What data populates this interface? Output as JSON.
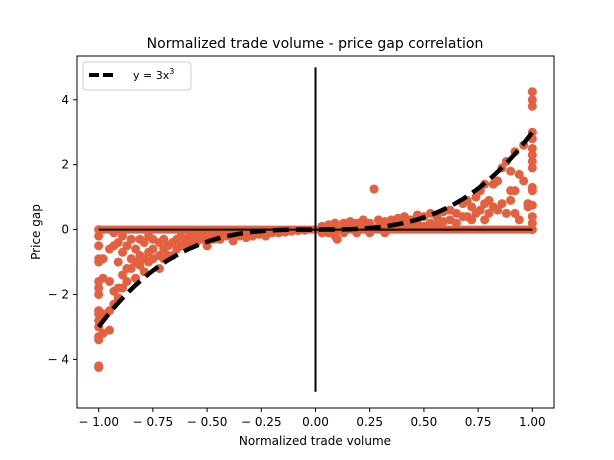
{
  "chart_data": {
    "type": "scatter",
    "title": "Normalized trade volume - price gap correlation",
    "xlabel": "Normalized trade volume",
    "ylabel": "Price gap",
    "xlim": [
      -1.1,
      1.1
    ],
    "ylim": [
      -5.5,
      5.35
    ],
    "xticks": [
      -1.0,
      -0.75,
      -0.5,
      -0.25,
      0.0,
      0.25,
      0.5,
      0.75,
      1.0
    ],
    "xtick_labels": [
      "− 1.00",
      "− 0.75",
      "− 0.50",
      "− 0.25",
      "0.00",
      "0.25",
      "0.50",
      "0.75",
      "1.00"
    ],
    "yticks": [
      -4,
      -2,
      0,
      2,
      4
    ],
    "ytick_labels": [
      "− 4",
      "− 2",
      "0",
      "2",
      "4"
    ],
    "grid": false,
    "legend": {
      "position": "top-left",
      "entries": [
        {
          "label": "y = 3x",
          "label_sup": "3"
        }
      ]
    },
    "colors": {
      "scatter": "#e4603e",
      "fit": "#000000",
      "lines": "#000000"
    },
    "reference_lines": [
      {
        "orientation": "vertical",
        "x": 0,
        "y_range": [
          -5,
          5
        ]
      },
      {
        "orientation": "horizontal",
        "y": 0,
        "x_range": [
          -1,
          1
        ]
      }
    ],
    "fit_curve": {
      "equation": "y = 3x^3",
      "coefficient": 3,
      "power": 3,
      "x_range": [
        -1,
        1
      ],
      "style": "dashed"
    },
    "series": [
      {
        "points": [
          [
            -1.0,
            -4.25
          ],
          [
            -1.0,
            -4.2
          ],
          [
            -1.0,
            -3.4
          ],
          [
            -1.0,
            -3.3
          ],
          [
            -1.0,
            -3.0
          ],
          [
            -1.0,
            -2.8
          ],
          [
            -1.0,
            -2.6
          ],
          [
            -1.0,
            -2.5
          ],
          [
            -1.0,
            -2.0
          ],
          [
            -1.0,
            -1.8
          ],
          [
            -1.0,
            -1.6
          ],
          [
            -1.0,
            -1.0
          ],
          [
            -1.0,
            -0.9
          ],
          [
            -1.0,
            -0.5
          ],
          [
            -1.0,
            -0.2
          ],
          [
            -1.0,
            0.0
          ],
          [
            -0.98,
            -3.2
          ],
          [
            -0.98,
            -2.6
          ],
          [
            -0.98,
            -1.5
          ],
          [
            -0.98,
            -0.9
          ],
          [
            -0.95,
            -3.1
          ],
          [
            -0.95,
            -2.5
          ],
          [
            -0.95,
            -1.6
          ],
          [
            -0.95,
            -0.6
          ],
          [
            -0.93,
            -2.3
          ],
          [
            -0.93,
            -1.9
          ],
          [
            -0.93,
            -0.5
          ],
          [
            -0.93,
            -0.1
          ],
          [
            -0.91,
            -2.1
          ],
          [
            -0.91,
            -1.8
          ],
          [
            -0.91,
            -1.0
          ],
          [
            -0.91,
            -0.4
          ],
          [
            -0.89,
            -1.8
          ],
          [
            -0.89,
            -1.4
          ],
          [
            -0.89,
            -0.7
          ],
          [
            -0.89,
            -0.2
          ],
          [
            -0.87,
            -1.6
          ],
          [
            -0.87,
            -1.2
          ],
          [
            -0.87,
            -0.5
          ],
          [
            -0.85,
            -1.2
          ],
          [
            -0.85,
            -0.9
          ],
          [
            -0.85,
            -0.3
          ],
          [
            -0.83,
            -1.5
          ],
          [
            -0.83,
            -1.0
          ],
          [
            -0.83,
            -0.6
          ],
          [
            -0.81,
            -1.1
          ],
          [
            -0.81,
            -0.8
          ],
          [
            -0.81,
            -0.3
          ],
          [
            -0.79,
            -1.3
          ],
          [
            -0.79,
            -0.9
          ],
          [
            -0.79,
            -0.4
          ],
          [
            -0.77,
            -1.0
          ],
          [
            -0.77,
            -0.7
          ],
          [
            -0.77,
            -0.2
          ],
          [
            -0.75,
            -0.9
          ],
          [
            -0.75,
            -0.6
          ],
          [
            -0.75,
            -0.3
          ],
          [
            -0.72,
            -1.2
          ],
          [
            -0.72,
            -0.8
          ],
          [
            -0.72,
            -0.4
          ],
          [
            -0.7,
            -0.9
          ],
          [
            -0.7,
            -0.6
          ],
          [
            -0.7,
            -0.3
          ],
          [
            -0.68,
            -0.8
          ],
          [
            -0.68,
            -0.5
          ],
          [
            -0.66,
            -0.8
          ],
          [
            -0.66,
            -0.4
          ],
          [
            -0.64,
            -0.6
          ],
          [
            -0.64,
            -0.3
          ],
          [
            -0.62,
            -0.5
          ],
          [
            -0.62,
            -0.2
          ],
          [
            -0.6,
            -0.5
          ],
          [
            -0.6,
            -0.3
          ],
          [
            -0.58,
            -0.4
          ],
          [
            -0.58,
            -0.2
          ],
          [
            -0.55,
            -0.4
          ],
          [
            -0.55,
            -0.2
          ],
          [
            -0.52,
            -0.3
          ],
          [
            -0.52,
            -0.1
          ],
          [
            -0.5,
            -0.5
          ],
          [
            -0.5,
            -0.2
          ],
          [
            -0.47,
            -0.3
          ],
          [
            -0.47,
            -0.15
          ],
          [
            -0.44,
            -0.3
          ],
          [
            -0.44,
            -0.1
          ],
          [
            -0.41,
            -0.2
          ],
          [
            -0.41,
            -0.1
          ],
          [
            -0.38,
            -0.35
          ],
          [
            -0.38,
            -0.15
          ],
          [
            -0.35,
            -0.2
          ],
          [
            -0.35,
            -0.1
          ],
          [
            -0.32,
            -0.25
          ],
          [
            -0.32,
            -0.1
          ],
          [
            -0.29,
            -0.2
          ],
          [
            -0.29,
            -0.05
          ],
          [
            -0.26,
            -0.15
          ],
          [
            -0.26,
            -0.05
          ],
          [
            -0.23,
            -0.2
          ],
          [
            -0.23,
            -0.1
          ],
          [
            -0.2,
            -0.1
          ],
          [
            -0.2,
            -0.05
          ],
          [
            -0.17,
            -0.1
          ],
          [
            -0.14,
            -0.08
          ],
          [
            -0.11,
            -0.05
          ],
          [
            -0.08,
            -0.03
          ],
          [
            -0.05,
            -0.02
          ],
          [
            0.03,
            0.1
          ],
          [
            0.03,
            -0.1
          ],
          [
            0.06,
            0.15
          ],
          [
            0.06,
            -0.1
          ],
          [
            0.09,
            0.2
          ],
          [
            0.09,
            -0.2
          ],
          [
            0.1,
            -0.3
          ],
          [
            0.13,
            0.2
          ],
          [
            0.13,
            -0.1
          ],
          [
            0.16,
            0.25
          ],
          [
            0.16,
            0.1
          ],
          [
            0.19,
            0.2
          ],
          [
            0.19,
            -0.1
          ],
          [
            0.22,
            0.3
          ],
          [
            0.22,
            0.1
          ],
          [
            0.25,
            0.2
          ],
          [
            0.25,
            -0.1
          ],
          [
            0.27,
            1.25
          ],
          [
            0.29,
            0.3
          ],
          [
            0.29,
            0.1
          ],
          [
            0.32,
            0.25
          ],
          [
            0.32,
            -0.1
          ],
          [
            0.35,
            0.3
          ],
          [
            0.35,
            0.1
          ],
          [
            0.38,
            0.35
          ],
          [
            0.38,
            0.15
          ],
          [
            0.41,
            0.4
          ],
          [
            0.41,
            0.2
          ],
          [
            0.44,
            0.3
          ],
          [
            0.44,
            0.1
          ],
          [
            0.47,
            0.45
          ],
          [
            0.47,
            0.2
          ],
          [
            0.5,
            0.4
          ],
          [
            0.5,
            0.1
          ],
          [
            0.53,
            0.5
          ],
          [
            0.53,
            0.2
          ],
          [
            0.56,
            0.4
          ],
          [
            0.56,
            0.15
          ],
          [
            0.59,
            0.55
          ],
          [
            0.59,
            0.25
          ],
          [
            0.62,
            0.6
          ],
          [
            0.62,
            0.3
          ],
          [
            0.65,
            0.5
          ],
          [
            0.65,
            0.2
          ],
          [
            0.68,
            0.8
          ],
          [
            0.68,
            0.4
          ],
          [
            0.7,
            0.9
          ],
          [
            0.7,
            0.4
          ],
          [
            0.72,
            0.7
          ],
          [
            0.72,
            0.3
          ],
          [
            0.74,
            1.0
          ],
          [
            0.74,
            0.5
          ],
          [
            0.76,
            1.2
          ],
          [
            0.76,
            0.6
          ],
          [
            0.78,
            1.4
          ],
          [
            0.78,
            0.8
          ],
          [
            0.78,
            0.3
          ],
          [
            0.8,
            0.9
          ],
          [
            0.8,
            0.5
          ],
          [
            0.82,
            1.4
          ],
          [
            0.82,
            0.7
          ],
          [
            0.84,
            1.5
          ],
          [
            0.84,
            0.6
          ],
          [
            0.86,
            1.9
          ],
          [
            0.86,
            0.8
          ],
          [
            0.88,
            2.1
          ],
          [
            0.88,
            0.5
          ],
          [
            0.9,
            1.8
          ],
          [
            0.9,
            0.9
          ],
          [
            0.9,
            1.2
          ],
          [
            0.92,
            2.4
          ],
          [
            0.92,
            1.2
          ],
          [
            0.92,
            0.5
          ],
          [
            0.94,
            1.7
          ],
          [
            0.94,
            0.3
          ],
          [
            0.96,
            2.6
          ],
          [
            0.96,
            1.5
          ],
          [
            0.98,
            0.8
          ],
          [
            0.98,
            0.7
          ],
          [
            1.0,
            4.25
          ],
          [
            1.0,
            4.0
          ],
          [
            1.0,
            3.8
          ],
          [
            1.0,
            3.0
          ],
          [
            1.0,
            2.8
          ],
          [
            1.0,
            2.5
          ],
          [
            1.0,
            2.3
          ],
          [
            1.0,
            2.1
          ],
          [
            1.0,
            1.9
          ],
          [
            1.0,
            1.3
          ],
          [
            1.0,
            1.2
          ],
          [
            1.0,
            0.75
          ],
          [
            1.0,
            0.4
          ],
          [
            1.0,
            0.2
          ],
          [
            1.0,
            0.0
          ]
        ]
      }
    ]
  }
}
